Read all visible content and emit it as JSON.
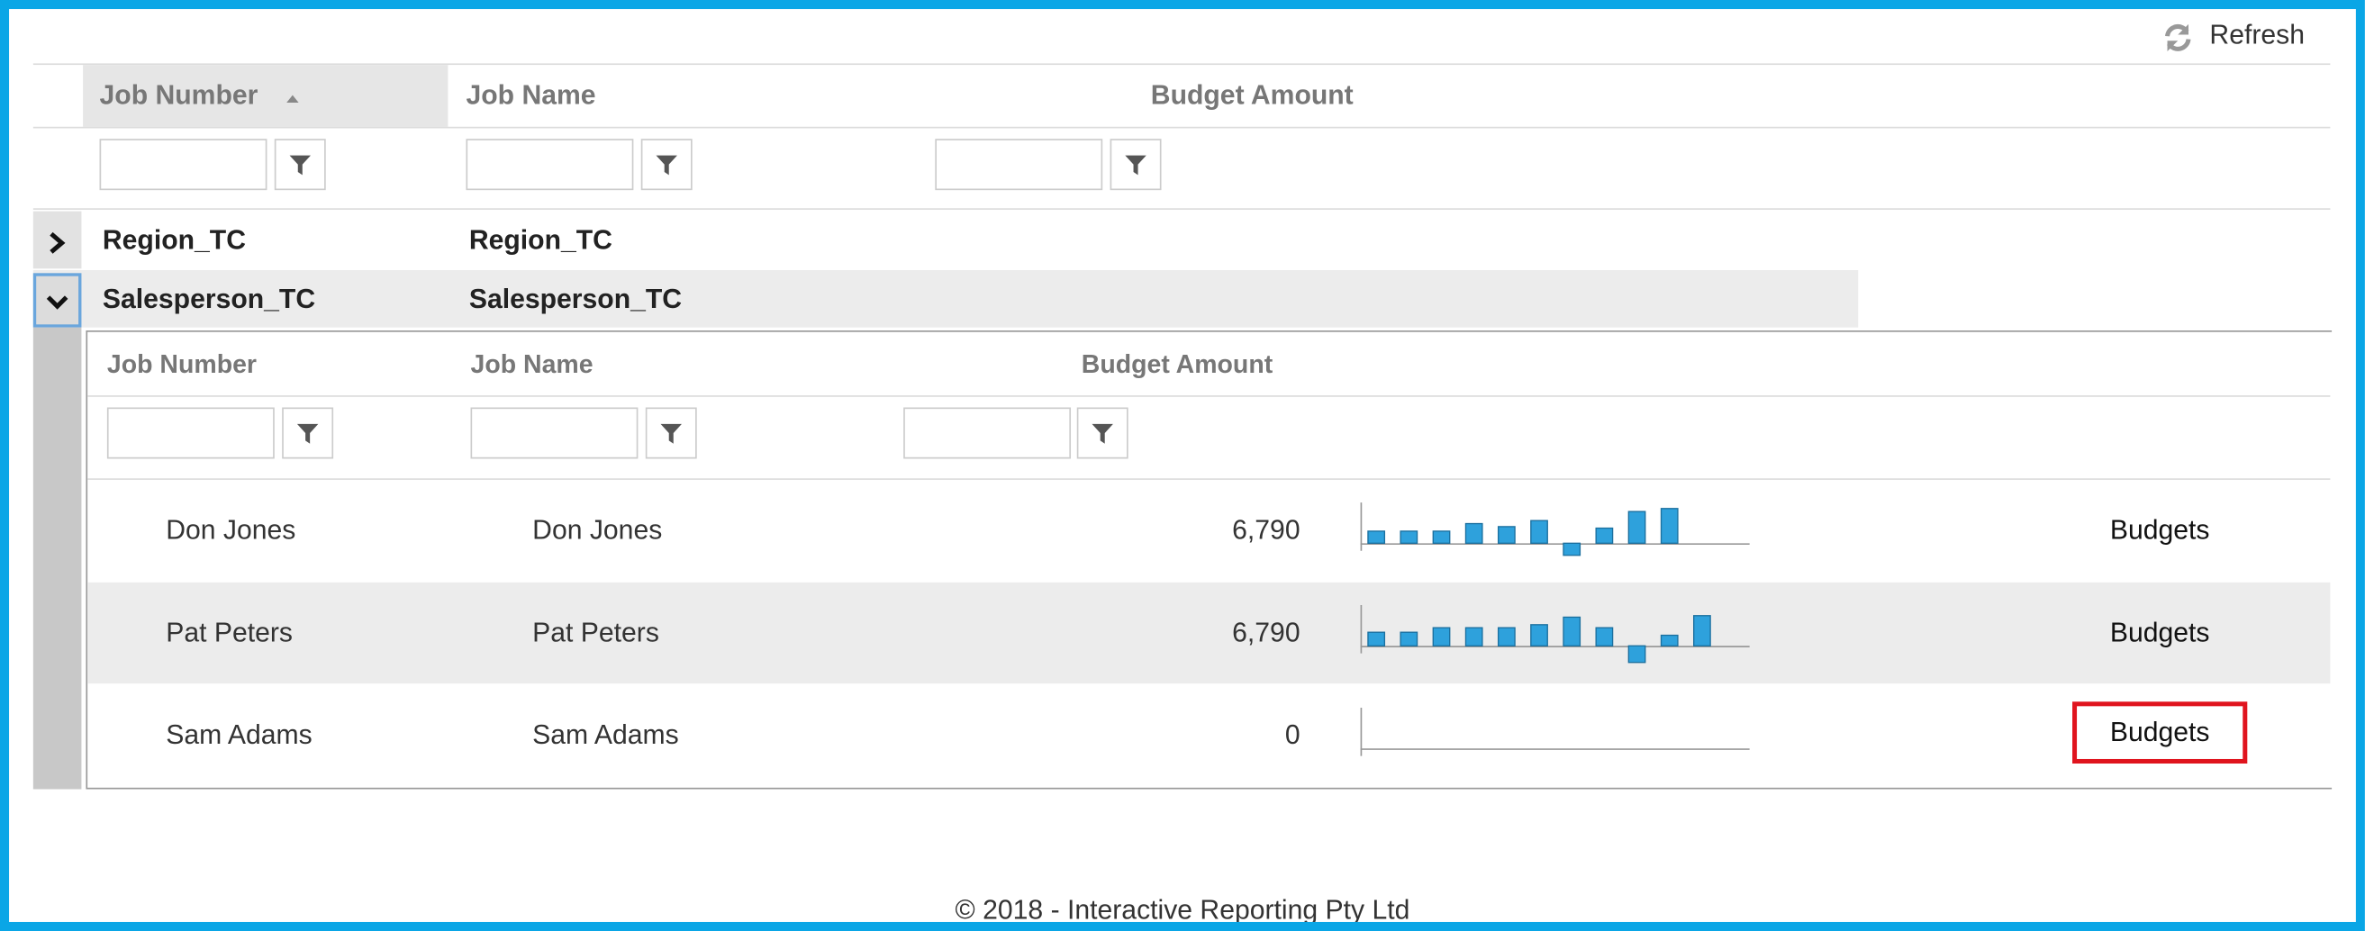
{
  "toolbar": {
    "refresh": "Refresh"
  },
  "grid": {
    "columns": [
      "Job Number",
      "Job Name",
      "Budget Amount"
    ],
    "groups": [
      {
        "job_number": "Region_TC",
        "job_name": "Region_TC"
      },
      {
        "job_number": "Salesperson_TC",
        "job_name": "Salesperson_TC"
      }
    ]
  },
  "detail": {
    "columns": [
      "Job Number",
      "Job Name",
      "Budget Amount"
    ],
    "rows": [
      {
        "job_number": "Don Jones",
        "job_name": "Don Jones",
        "budget_amount": "6,790",
        "trend": [
          8,
          8,
          8,
          13,
          11,
          15,
          -8,
          10,
          21,
          23
        ],
        "action": "Budgets"
      },
      {
        "job_number": "Pat Peters",
        "job_name": "Pat Peters",
        "budget_amount": "6,790",
        "trend": [
          9,
          9,
          12,
          12,
          12,
          14,
          19,
          12,
          -11,
          7,
          20
        ],
        "action": "Budgets"
      },
      {
        "job_number": "Sam Adams",
        "job_name": "Sam Adams",
        "budget_amount": "0",
        "trend": [],
        "action": "Budgets"
      }
    ]
  },
  "footer": "© 2018 - Interactive Reporting Pty Ltd"
}
